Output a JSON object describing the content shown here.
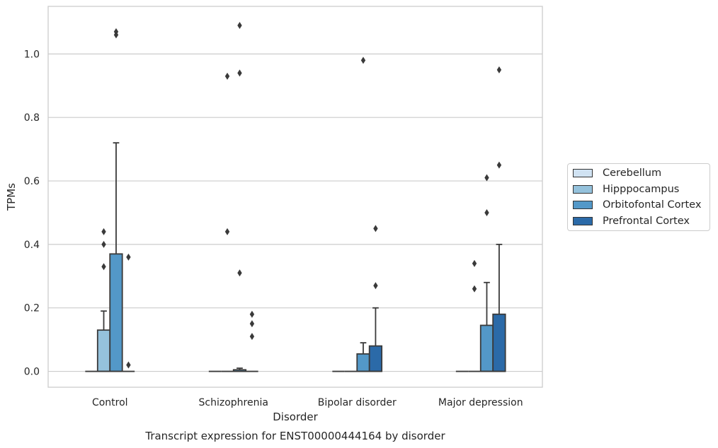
{
  "chart_data": {
    "type": "box",
    "caption": "Transcript expression for ENST00000444164 by disorder",
    "xlabel": "Disorder",
    "ylabel": "TPMs",
    "ylim": [
      -0.05,
      1.15
    ],
    "yticks": [
      0.0,
      0.2,
      0.4,
      0.6,
      0.8,
      1.0
    ],
    "ytick_labels": [
      "0.0",
      "0.2",
      "0.4",
      "0.6",
      "0.8",
      "1.0"
    ],
    "grid": "horizontal",
    "legend_position": "right",
    "categories": [
      "Control",
      "Schizophrenia",
      "Bipolar disorder",
      "Major depression"
    ],
    "series": [
      {
        "name": "Cerebellum",
        "color": "#d0e2f2",
        "boxes": [
          {
            "q1": 0,
            "median": 0,
            "q3": 0,
            "whisker_low": 0,
            "whisker_high": 0,
            "outliers": []
          },
          {
            "q1": 0,
            "median": 0,
            "q3": 0,
            "whisker_low": 0,
            "whisker_high": 0,
            "outliers": []
          },
          {
            "q1": 0,
            "median": 0,
            "q3": 0,
            "whisker_low": 0,
            "whisker_high": 0,
            "outliers": []
          },
          {
            "q1": 0,
            "median": 0,
            "q3": 0,
            "whisker_low": 0,
            "whisker_high": 0,
            "outliers": []
          }
        ]
      },
      {
        "name": "Hipppocampus",
        "color": "#95c2dc",
        "boxes": [
          {
            "q1": 0,
            "median": 0,
            "q3": 0.13,
            "whisker_low": 0,
            "whisker_high": 0.19,
            "outliers": [
              0.33,
              0.4,
              0.44
            ]
          },
          {
            "q1": 0,
            "median": 0,
            "q3": 0,
            "whisker_low": 0,
            "whisker_high": 0,
            "outliers": [
              0.44,
              0.93
            ]
          },
          {
            "q1": 0,
            "median": 0,
            "q3": 0,
            "whisker_low": 0,
            "whisker_high": 0,
            "outliers": []
          },
          {
            "q1": 0,
            "median": 0,
            "q3": 0,
            "whisker_low": 0,
            "whisker_high": 0,
            "outliers": [
              0.26,
              0.34
            ]
          }
        ]
      },
      {
        "name": "Orbitofontal Cortex",
        "color": "#5398c8",
        "boxes": [
          {
            "q1": 0,
            "median": 0,
            "q3": 0.37,
            "whisker_low": 0,
            "whisker_high": 0.72,
            "outliers": [
              1.06,
              1.07
            ]
          },
          {
            "q1": 0,
            "median": 0,
            "q3": 0.005,
            "whisker_low": 0,
            "whisker_high": 0.01,
            "outliers": [
              0.31,
              0.94,
              1.09
            ]
          },
          {
            "q1": 0,
            "median": 0,
            "q3": 0.055,
            "whisker_low": 0,
            "whisker_high": 0.09,
            "outliers": [
              0.98
            ]
          },
          {
            "q1": 0,
            "median": 0,
            "q3": 0.145,
            "whisker_low": 0,
            "whisker_high": 0.28,
            "outliers": [
              0.5,
              0.61
            ]
          }
        ]
      },
      {
        "name": "Prefrontal Cortex",
        "color": "#2b6aa8",
        "boxes": [
          {
            "q1": 0,
            "median": 0,
            "q3": 0,
            "whisker_low": 0,
            "whisker_high": 0,
            "outliers": [
              0.02,
              0.36
            ]
          },
          {
            "q1": 0,
            "median": 0,
            "q3": 0,
            "whisker_low": 0,
            "whisker_high": 0,
            "outliers": [
              0.11,
              0.15,
              0.18
            ]
          },
          {
            "q1": 0,
            "median": 0,
            "q3": 0.08,
            "whisker_low": 0,
            "whisker_high": 0.2,
            "outliers": [
              0.27,
              0.45
            ]
          },
          {
            "q1": 0,
            "median": 0,
            "q3": 0.18,
            "whisker_low": 0,
            "whisker_high": 0.4,
            "outliers": [
              0.65,
              0.95
            ]
          }
        ]
      }
    ]
  }
}
